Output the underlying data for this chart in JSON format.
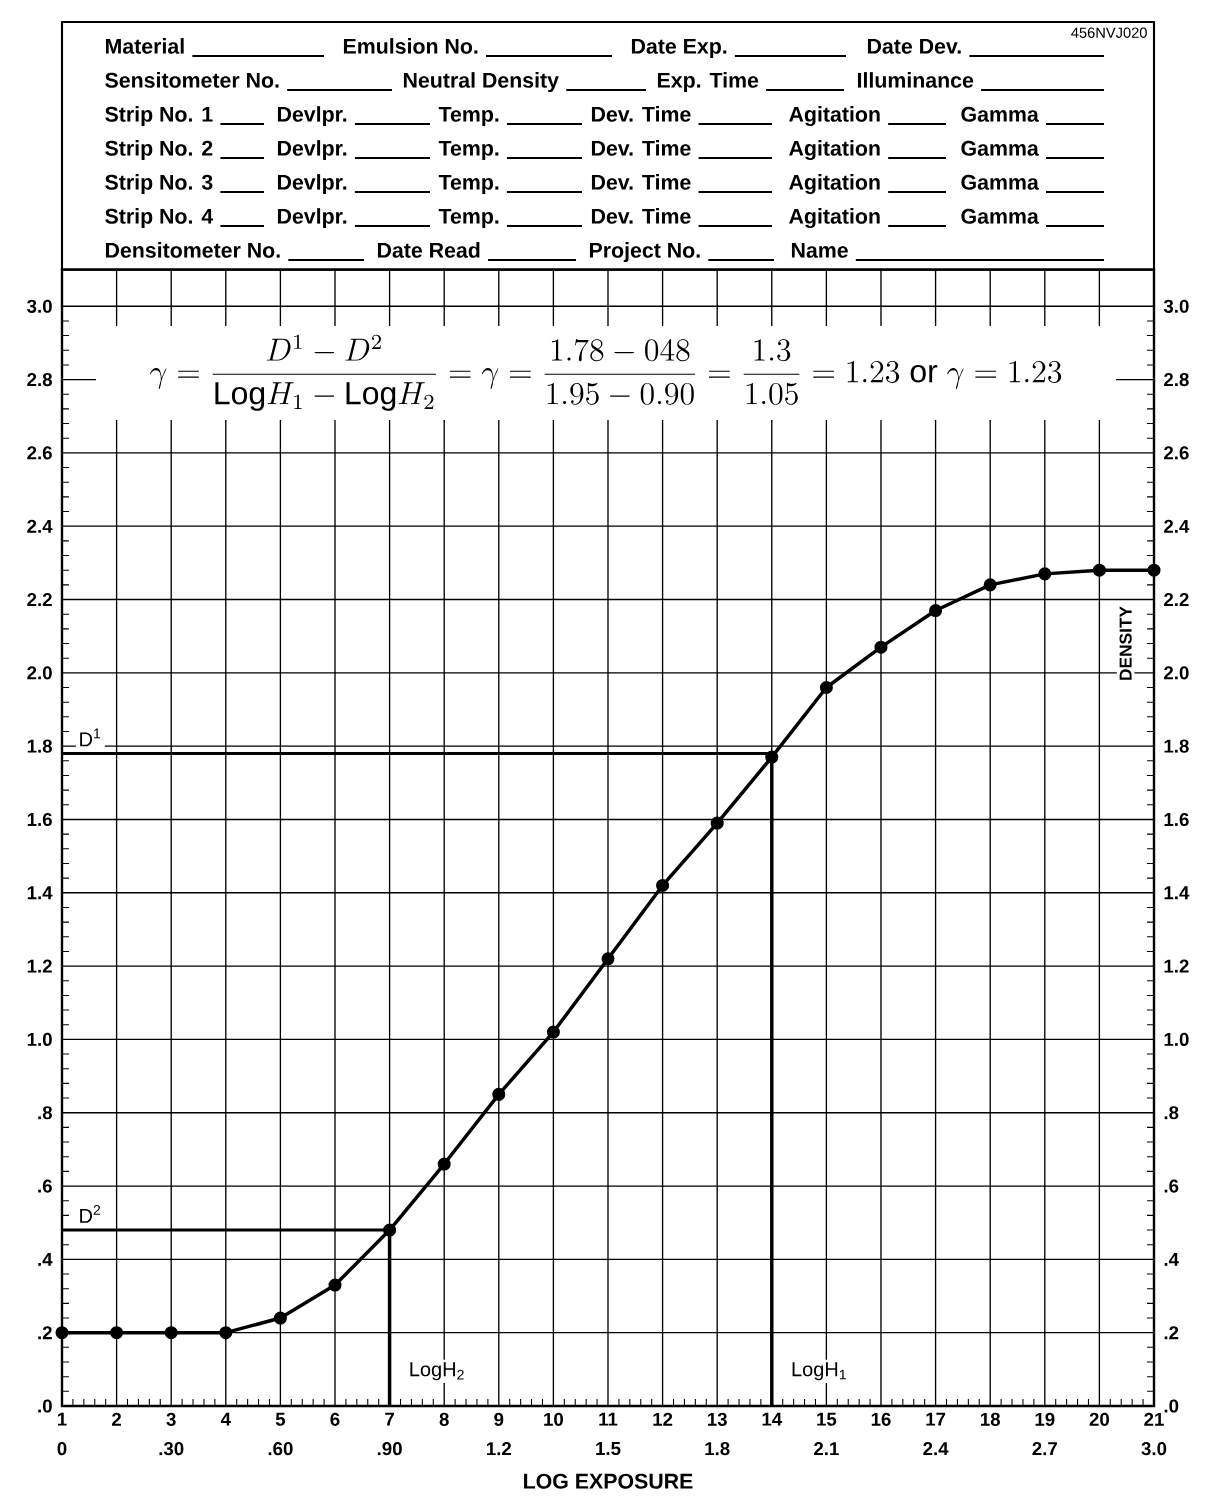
{
  "chart_data": {
    "type": "line",
    "x": [
      1,
      2,
      3,
      4,
      5,
      6,
      7,
      8,
      9,
      10,
      11,
      12,
      13,
      14,
      15,
      16,
      17,
      18,
      19,
      20,
      21
    ],
    "values": [
      0.2,
      0.2,
      0.2,
      0.2,
      0.24,
      0.33,
      0.48,
      0.66,
      0.85,
      1.02,
      1.22,
      1.42,
      1.59,
      1.77,
      1.96,
      2.07,
      2.17,
      2.24,
      2.27,
      2.28,
      2.28
    ],
    "color": "#000000",
    "marker": "circle",
    "line_style": "solid",
    "grid": true,
    "xlim": [
      1,
      21
    ],
    "xticks": [
      1,
      2,
      3,
      4,
      5,
      6,
      7,
      8,
      9,
      10,
      11,
      12,
      13,
      14,
      15,
      16,
      17,
      18,
      19,
      20,
      21
    ],
    "ylim": [
      0,
      3.1
    ],
    "yticks": [
      {
        "value": 0,
        "label": ".0"
      },
      {
        "value": 0.2,
        "label": ".2"
      },
      {
        "value": 0.4,
        "label": ".4"
      },
      {
        "value": 0.6,
        "label": ".6"
      },
      {
        "value": 0.8,
        "label": ".8"
      },
      {
        "value": 1,
        "label": "1.0"
      },
      {
        "value": 1.2,
        "label": "1.2"
      },
      {
        "value": 1.4,
        "label": "1.4"
      },
      {
        "value": 1.6,
        "label": "1.6"
      },
      {
        "value": 1.8,
        "label": "1.8"
      },
      {
        "value": 2,
        "label": "2.0"
      },
      {
        "value": 2.2,
        "label": "2.2"
      },
      {
        "value": 2.4,
        "label": "2.4"
      },
      {
        "value": 2.6,
        "label": "2.6"
      },
      {
        "value": 2.8,
        "label": "2.8"
      },
      {
        "value": 3,
        "label": "3.0"
      }
    ],
    "y2lim": [
      0,
      3.1
    ],
    "y2ticks": [
      {
        "value": 0,
        "label": ".0"
      },
      {
        "value": 0.2,
        "label": ".2"
      },
      {
        "value": 0.4,
        "label": ".4"
      },
      {
        "value": 0.6,
        "label": ".6"
      },
      {
        "value": 0.8,
        "label": ".8"
      },
      {
        "value": 1,
        "label": "1.0"
      },
      {
        "value": 1.2,
        "label": "1.2"
      },
      {
        "value": 1.4,
        "label": "1.4"
      },
      {
        "value": 1.6,
        "label": "1.6"
      },
      {
        "value": 1.8,
        "label": "1.8"
      },
      {
        "value": 2,
        "label": "2.0"
      },
      {
        "value": 2.2,
        "label": "2.2"
      },
      {
        "value": 2.4,
        "label": "2.4"
      },
      {
        "value": 2.6,
        "label": "2.6"
      },
      {
        "value": 2.8,
        "label": "2.8"
      },
      {
        "value": 3,
        "label": "3.0"
      }
    ],
    "y2label": "DENSITY",
    "x2lim": [
      0,
      3.0
    ],
    "x2ticks": [
      0,
      {
        "value": 0.3,
        "label": ".30"
      },
      {
        "value": 0.6,
        "label": ".60"
      },
      {
        "value": 0.9,
        "label": ".90"
      },
      1.2,
      1.5,
      1.8,
      2.1,
      2.4,
      2.7,
      {
        "value": 3,
        "label": "3.0"
      }
    ],
    "x2label": "LOG EXPOSURE",
    "ref_lines": [
      {
        "axis": "y",
        "value": 1.78,
        "label": "D$^{1}$"
      },
      {
        "axis": "y",
        "value": 0.48,
        "label": "D$^{2}$"
      },
      {
        "axis": "x",
        "value": 14,
        "label": "LogH$_{1}$"
      },
      {
        "axis": "x",
        "value": 7,
        "label": "LogH$_{2}$"
      }
    ],
    "annotations": [
      "\\gamma = \\frac{D^{1} - D^{2}}{\\mathrm{Log}H_{1} - \\mathrm{Log}H_{2}} = \\gamma = \\frac{1.78 - 048}{1.95 - 0.90} = \\frac{1.3}{1.05} = 1.23\\ \\mathrm{or}\\ \\gamma = 1.23",
      "456NVJ020",
      "Material",
      "Emulsion No.",
      "Date Exp.",
      "Date Dev.",
      "Sensitometer No.",
      "Neutral Density",
      "Exp. Time",
      "Illuminance",
      "Strip No. 1",
      "Devlpr.",
      "Temp.",
      "Dev. Time",
      "Agitation",
      "Gamma",
      "Strip No. 2",
      "Devlpr.",
      "Temp.",
      "Dev. Time",
      "Agitation",
      "Gamma",
      "Strip No. 3",
      "Devlpr.",
      "Temp.",
      "Dev. Time",
      "Agitation",
      "Gamma",
      "Strip No. 4",
      "Devlpr.",
      "Temp.",
      "Dev. Time",
      "Agitation",
      "Gamma",
      "Densitometer No.",
      "Date Read",
      "Project No.",
      "Name"
    ]
  }
}
